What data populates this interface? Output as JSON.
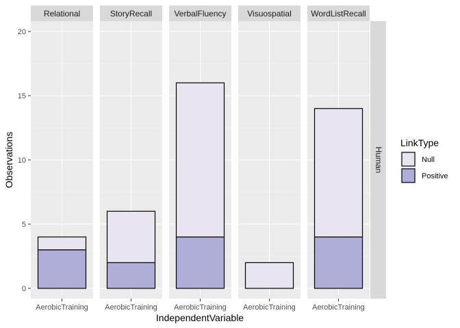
{
  "chart_data": {
    "type": "bar",
    "stacked": true,
    "facet_variable": "DependentVariable",
    "row_strip": "Human",
    "panels": [
      {
        "name": "Relational",
        "category": "AerobicTraining",
        "values": {
          "Positive": 3,
          "Null": 1
        }
      },
      {
        "name": "StoryRecall",
        "category": "AerobicTraining",
        "values": {
          "Positive": 2,
          "Null": 4
        }
      },
      {
        "name": "VerbalFluency",
        "category": "AerobicTraining",
        "values": {
          "Positive": 4,
          "Null": 12
        }
      },
      {
        "name": "Visuospatial",
        "category": "AerobicTraining",
        "values": {
          "Positive": 0,
          "Null": 2
        }
      },
      {
        "name": "WordListRecall",
        "category": "AerobicTraining",
        "values": {
          "Positive": 4,
          "Null": 10
        }
      }
    ],
    "series": [
      {
        "name": "Null",
        "color": "#e8e4f0"
      },
      {
        "name": "Positive",
        "color": "#aeaed6"
      }
    ],
    "xlabel": "IndependentVariable",
    "ylabel": "Observations",
    "ylim": [
      -0.8,
      20.8
    ],
    "yticks": [
      0,
      5,
      10,
      15,
      20
    ],
    "grid": true,
    "legend": {
      "title": "LinkType",
      "position": "right",
      "entries": [
        "Null",
        "Positive"
      ]
    }
  }
}
